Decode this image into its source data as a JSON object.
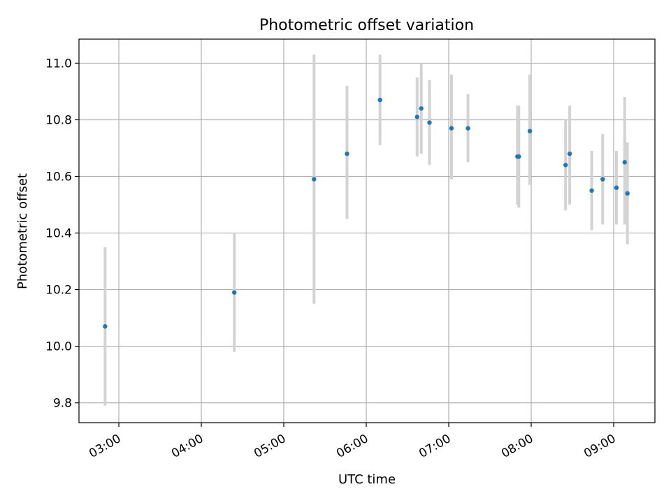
{
  "chart_data": {
    "type": "scatter",
    "title": "Photometric offset variation",
    "xlabel": "UTC time",
    "ylabel": "Photometric offset",
    "x_type": "time",
    "xlim": [
      "02:31",
      "09:30"
    ],
    "ylim": [
      9.73,
      11.085
    ],
    "x_ticks": [
      "03:00",
      "04:00",
      "05:00",
      "06:00",
      "07:00",
      "08:00",
      "09:00"
    ],
    "y_ticks": [
      9.8,
      10.0,
      10.2,
      10.4,
      10.6,
      10.8,
      11.0
    ],
    "y_tick_labels": [
      "9.8",
      "10.0",
      "10.2",
      "10.4",
      "10.6",
      "10.8",
      "11.0"
    ],
    "grid": true,
    "legend": "none",
    "colors": {
      "point": "#1f77b4",
      "errorbar": "#d3d3d3",
      "grid": "#b0b0b0"
    },
    "series": [
      {
        "points": [
          {
            "x": "02:50",
            "y": 10.07,
            "low": 9.79,
            "high": 10.35
          },
          {
            "x": "04:24",
            "y": 10.19,
            "low": 9.98,
            "high": 10.4
          },
          {
            "x": "05:22",
            "y": 10.59,
            "low": 10.15,
            "high": 11.03
          },
          {
            "x": "05:46",
            "y": 10.68,
            "low": 10.45,
            "high": 10.92
          },
          {
            "x": "06:10",
            "y": 10.87,
            "low": 10.71,
            "high": 11.03
          },
          {
            "x": "06:37",
            "y": 10.81,
            "low": 10.67,
            "high": 10.95
          },
          {
            "x": "06:40",
            "y": 10.84,
            "low": 10.68,
            "high": 11.0
          },
          {
            "x": "06:46",
            "y": 10.79,
            "low": 10.64,
            "high": 10.94
          },
          {
            "x": "07:02",
            "y": 10.77,
            "low": 10.59,
            "high": 10.96
          },
          {
            "x": "07:14",
            "y": 10.77,
            "low": 10.65,
            "high": 10.89
          },
          {
            "x": "07:50",
            "y": 10.67,
            "low": 10.5,
            "high": 10.85
          },
          {
            "x": "07:51",
            "y": 10.67,
            "low": 10.49,
            "high": 10.85
          },
          {
            "x": "07:59",
            "y": 10.76,
            "low": 10.57,
            "high": 10.96
          },
          {
            "x": "08:25",
            "y": 10.64,
            "low": 10.48,
            "high": 10.8
          },
          {
            "x": "08:28",
            "y": 10.68,
            "low": 10.5,
            "high": 10.85
          },
          {
            "x": "08:44",
            "y": 10.55,
            "low": 10.41,
            "high": 10.69
          },
          {
            "x": "08:52",
            "y": 10.59,
            "low": 10.43,
            "high": 10.75
          },
          {
            "x": "09:02",
            "y": 10.56,
            "low": 10.43,
            "high": 10.69
          },
          {
            "x": "09:08",
            "y": 10.65,
            "low": 10.43,
            "high": 10.88
          },
          {
            "x": "09:10",
            "y": 10.54,
            "low": 10.36,
            "high": 10.72
          }
        ]
      }
    ]
  }
}
